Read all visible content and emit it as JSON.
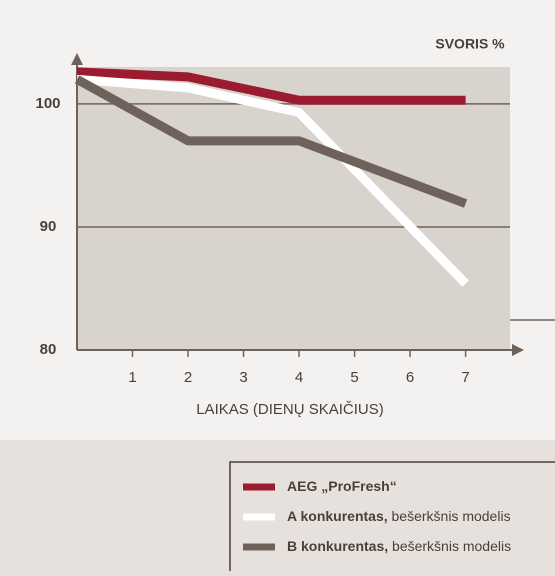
{
  "chart_data": {
    "type": "line",
    "title": "SVORIS %",
    "x_label": "LAIKAS (DIENŲ SKAIČIUS)",
    "x": [
      0,
      2,
      4,
      7
    ],
    "xlim": [
      0,
      7.8
    ],
    "xticks": [
      1,
      2,
      3,
      4,
      5,
      6,
      7
    ],
    "ylim": [
      80,
      103
    ],
    "yticks": [
      80,
      90,
      100
    ],
    "grid": true,
    "series": [
      {
        "name": "AEG „ProFresh“",
        "color": "#9b1b30",
        "values": [
          102.6,
          102.2,
          100.3,
          100.3
        ]
      },
      {
        "name": "A konkurentas,",
        "description": "bešerkšnis modelis",
        "color": "#ffffff",
        "values": [
          102,
          101.3,
          99.3,
          85.4
        ]
      },
      {
        "name": "B konkurentas,",
        "description": "bešerkšnis modelis",
        "color": "#6e625a",
        "values": [
          102,
          97,
          97,
          91.9
        ]
      }
    ]
  }
}
